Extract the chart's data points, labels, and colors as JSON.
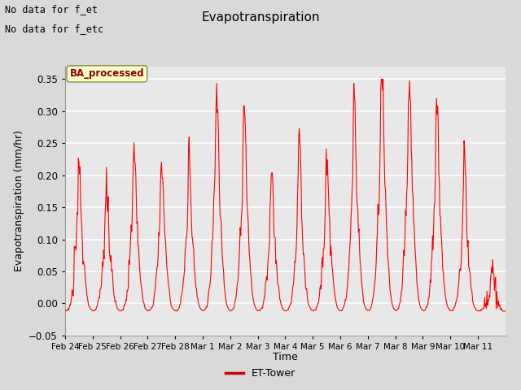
{
  "title": "Evapotranspiration",
  "ylabel": "Evapotranspiration (mm/hr)",
  "xlabel": "Time",
  "legend_label": "ET-Tower",
  "legend_color": "#cc0000",
  "line_color": "red",
  "ylim": [
    -0.05,
    0.37
  ],
  "yticks": [
    -0.05,
    0.0,
    0.05,
    0.1,
    0.15,
    0.2,
    0.25,
    0.3,
    0.35
  ],
  "fig_bg_color": "#d9d9d9",
  "plot_bg_color": "#e8e8e8",
  "grid_color": "white",
  "text_annotations": [
    "No data for f_et",
    "No data for f_etc"
  ],
  "box_label": "BA_processed",
  "box_label_color": "#8b0000",
  "box_bg_color": "#ffffcc",
  "xtick_labels": [
    "Feb 24",
    "Feb 25",
    "Feb 26",
    "Feb 27",
    "Feb 28",
    "Mar 1",
    "Mar 2",
    "Mar 3",
    "Mar 4",
    "Mar 5",
    "Mar 6",
    "Mar 7",
    "Mar 8",
    "Mar 9",
    "Mar 10",
    "Mar 11"
  ],
  "days": 16,
  "num_points": 768
}
